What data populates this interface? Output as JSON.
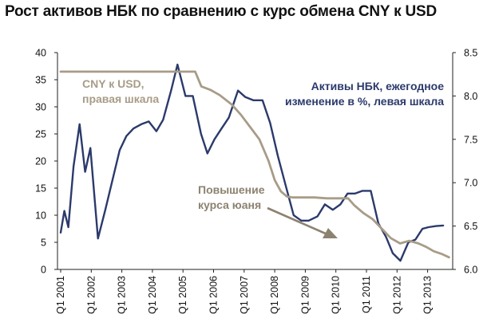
{
  "chart_data": {
    "type": "line",
    "title": "Рост активов НБК по сравнению с курс обмена CNY к USD",
    "x_tick_labels": [
      "Q1 2001",
      "Q1 2002",
      "Q1 2003",
      "Q1 2004",
      "Q1 2005",
      "Q1 2006",
      "Q1 2007",
      "Q1 2008",
      "Q1 2009",
      "Q1 2010",
      "Q1 2011",
      "Q1 2012",
      "Q1 2013"
    ],
    "x_start_year": 2001,
    "x_end_year": 2013.75,
    "y_left": {
      "lim": [
        0,
        40
      ],
      "ticks": [
        "0",
        "5",
        "10",
        "15",
        "20",
        "25",
        "30",
        "35",
        "40"
      ]
    },
    "y_right": {
      "lim": [
        6.0,
        8.5
      ],
      "ticks": [
        "6.0",
        "6.5",
        "7.0",
        "7.5",
        "8.0",
        "8.5"
      ]
    },
    "grid": false,
    "series": [
      {
        "name": "Активы НБК, ежегодное изменение в %, левая шкала",
        "axis": "left",
        "color": "#2b3a6b",
        "x": [
          2001.0,
          2001.12,
          2001.25,
          2001.42,
          2001.62,
          2001.8,
          2001.97,
          2002.22,
          2002.46,
          2002.93,
          2003.15,
          2003.38,
          2003.64,
          2003.88,
          2004.13,
          2004.35,
          2004.61,
          2004.82,
          2005.08,
          2005.32,
          2005.59,
          2005.8,
          2006.03,
          2006.26,
          2006.5,
          2006.8,
          2007.04,
          2007.3,
          2007.6,
          2007.85,
          2008.1,
          2008.38,
          2008.62,
          2008.87,
          2009.11,
          2009.4,
          2009.64,
          2009.9,
          2010.15,
          2010.38,
          2010.63,
          2010.87,
          2011.14,
          2011.39,
          2011.64,
          2011.86,
          2012.11,
          2012.37,
          2012.6,
          2012.83,
          2013.03,
          2013.28,
          2013.51
        ],
        "values": [
          6.8,
          10.8,
          7.8,
          19.0,
          26.8,
          18.0,
          22.4,
          5.7,
          11.0,
          22.0,
          24.6,
          26.0,
          26.8,
          27.3,
          25.5,
          27.6,
          33.0,
          37.8,
          32.0,
          32.0,
          25.0,
          21.4,
          24.0,
          26.0,
          28.0,
          33.0,
          31.8,
          31.2,
          31.2,
          27.0,
          21.0,
          15.0,
          10.0,
          9.0,
          9.0,
          9.8,
          12.0,
          11.0,
          12.0,
          14.0,
          14.0,
          14.5,
          14.5,
          8.5,
          6.0,
          3.0,
          1.6,
          5.0,
          5.5,
          7.5,
          7.8,
          8.0,
          8.1
        ],
        "label": "Активы НБК, ежегодное изменение в %, левая шкала"
      },
      {
        "name": "CNY к USD, правая шкала",
        "axis": "right",
        "color": "#a89c88",
        "x": [
          2001.0,
          2001.8,
          2002.6,
          2003.4,
          2004.2,
          2005.0,
          2005.4,
          2005.6,
          2005.9,
          2006.2,
          2006.6,
          2006.9,
          2007.2,
          2007.5,
          2007.8,
          2008.0,
          2008.2,
          2008.4,
          2008.6,
          2008.9,
          2009.3,
          2009.7,
          2010.1,
          2010.4,
          2010.6,
          2010.9,
          2011.2,
          2011.5,
          2011.8,
          2012.1,
          2012.4,
          2012.7,
          2012.95,
          2013.2,
          2013.45,
          2013.7
        ],
        "values": [
          8.28,
          8.28,
          8.28,
          8.28,
          8.28,
          8.28,
          8.28,
          8.11,
          8.07,
          8.01,
          7.9,
          7.78,
          7.64,
          7.5,
          7.25,
          7.03,
          6.9,
          6.84,
          6.83,
          6.83,
          6.83,
          6.82,
          6.82,
          6.82,
          6.74,
          6.65,
          6.58,
          6.47,
          6.36,
          6.3,
          6.33,
          6.3,
          6.26,
          6.21,
          6.18,
          6.14
        ],
        "label": "CNY к USD, правая шкала"
      }
    ],
    "annotations": [
      {
        "text": "Повышение курса юаня",
        "arrow": true
      }
    ]
  }
}
